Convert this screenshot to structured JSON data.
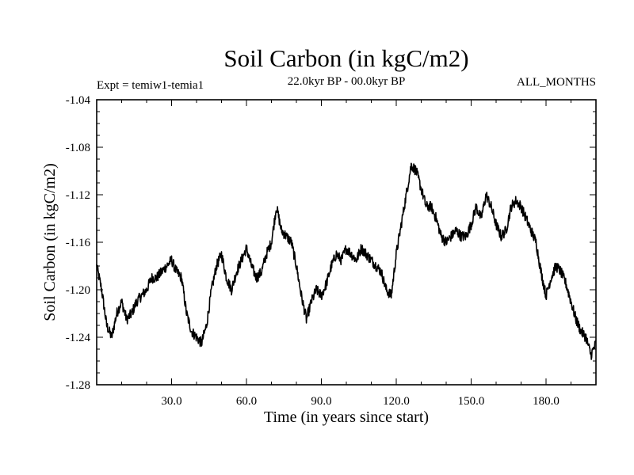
{
  "chart_data": {
    "type": "line",
    "title": "Soil Carbon (in kgC/m2)",
    "subtitle_left": "Expt = temiw1-temia1",
    "subtitle_center": "22.0kyr BP - 00.0kyr BP",
    "subtitle_right": "ALL_MONTHS",
    "xlabel": "Time (in years since start)",
    "ylabel": "Soil Carbon (in kgC/m2)",
    "xlim": [
      0,
      200
    ],
    "ylim": [
      -1.28,
      -1.04
    ],
    "xticks": [
      30,
      60,
      90,
      120,
      150,
      180
    ],
    "xtick_labels": [
      "30.0",
      "60.0",
      "90.0",
      "120.0",
      "150.0",
      "180.0"
    ],
    "yticks": [
      -1.28,
      -1.24,
      -1.2,
      -1.16,
      -1.12,
      -1.08,
      -1.04
    ],
    "ytick_labels": [
      "-1.28",
      "-1.24",
      "-1.20",
      "-1.16",
      "-1.12",
      "-1.08",
      "-1.04"
    ],
    "series": [
      {
        "name": "Soil Carbon",
        "x": [
          0,
          2,
          4,
          6,
          8,
          10,
          12,
          14,
          16,
          18,
          20,
          22,
          24,
          26,
          28,
          30,
          32,
          34,
          36,
          38,
          40,
          42,
          44,
          46,
          48,
          50,
          52,
          54,
          56,
          58,
          60,
          62,
          64,
          66,
          68,
          70,
          72,
          74,
          76,
          78,
          80,
          82,
          84,
          86,
          88,
          90,
          92,
          94,
          96,
          98,
          100,
          102,
          104,
          106,
          108,
          110,
          112,
          114,
          116,
          118,
          120,
          122,
          124,
          126,
          128,
          130,
          132,
          134,
          136,
          138,
          140,
          142,
          144,
          146,
          148,
          150,
          152,
          154,
          156,
          158,
          160,
          162,
          164,
          166,
          168,
          170,
          172,
          174,
          176,
          178,
          180,
          182,
          184,
          186,
          188,
          190,
          192,
          194,
          196,
          198,
          200
        ],
        "values": [
          -1.18,
          -1.2,
          -1.23,
          -1.24,
          -1.22,
          -1.21,
          -1.225,
          -1.22,
          -1.21,
          -1.205,
          -1.2,
          -1.19,
          -1.19,
          -1.185,
          -1.18,
          -1.175,
          -1.185,
          -1.19,
          -1.22,
          -1.235,
          -1.24,
          -1.245,
          -1.23,
          -1.2,
          -1.18,
          -1.17,
          -1.19,
          -1.2,
          -1.185,
          -1.175,
          -1.165,
          -1.18,
          -1.19,
          -1.185,
          -1.17,
          -1.16,
          -1.13,
          -1.15,
          -1.155,
          -1.16,
          -1.18,
          -1.205,
          -1.225,
          -1.21,
          -1.2,
          -1.205,
          -1.195,
          -1.18,
          -1.17,
          -1.175,
          -1.165,
          -1.17,
          -1.175,
          -1.165,
          -1.17,
          -1.175,
          -1.18,
          -1.185,
          -1.2,
          -1.205,
          -1.17,
          -1.145,
          -1.12,
          -1.095,
          -1.1,
          -1.115,
          -1.13,
          -1.13,
          -1.14,
          -1.155,
          -1.16,
          -1.155,
          -1.15,
          -1.155,
          -1.155,
          -1.145,
          -1.13,
          -1.14,
          -1.12,
          -1.13,
          -1.145,
          -1.155,
          -1.15,
          -1.13,
          -1.125,
          -1.13,
          -1.14,
          -1.15,
          -1.16,
          -1.185,
          -1.205,
          -1.19,
          -1.18,
          -1.185,
          -1.195,
          -1.21,
          -1.225,
          -1.235,
          -1.24,
          -1.255,
          -1.245
        ]
      }
    ]
  }
}
